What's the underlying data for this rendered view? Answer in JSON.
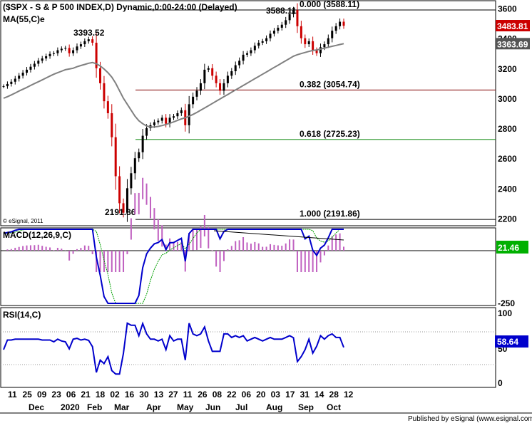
{
  "header": {
    "title": "($SPX - S & P 500 INDEX,D) Dynamic,0:00-24:00 (Delayed)",
    "ma_label": "MA(55,C)e",
    "copyright": "© eSignal, 2011",
    "footer": "Published by eSignal (www.esignal.com)"
  },
  "chart_data": [
    {
      "type": "candlestick",
      "panel": "price",
      "y_ticks": [
        2200,
        2400,
        2600,
        2800,
        3000,
        3200,
        3400,
        3600
      ],
      "ylim": [
        2150,
        3650
      ],
      "annotations": {
        "high_feb": "3393.52",
        "low_mar": "2191.86",
        "high_sep": "3588.11"
      },
      "fib_levels": [
        {
          "label": "0.000 (3588.11)",
          "value": 3588.11,
          "color": "#000000"
        },
        {
          "label": "0.382 (3054.74)",
          "value": 3054.74,
          "color": "#800000"
        },
        {
          "label": "0.618 (2725.23)",
          "value": 2725.23,
          "color": "#008000"
        },
        {
          "label": "1.000 (2191.86)",
          "value": 2191.86,
          "color": "#000000"
        }
      ],
      "last_price": {
        "label": "3483.81",
        "value": 3483.81,
        "color": "#cc0000"
      },
      "ma_value": {
        "label": "3363.69",
        "value": 3363.69,
        "color": "#555555"
      },
      "price_series": [
        3080,
        3095,
        3110,
        3130,
        3150,
        3170,
        3190,
        3210,
        3230,
        3250,
        3265,
        3280,
        3295,
        3300,
        3320,
        3330,
        3335,
        3300,
        3320,
        3345,
        3360,
        3380,
        3393,
        3370,
        3200,
        3100,
        2980,
        2900,
        2740,
        2480,
        2300,
        2237,
        2400,
        2500,
        2600,
        2640,
        2750,
        2800,
        2820,
        2840,
        2850,
        2870,
        2830,
        2870,
        2880,
        2900,
        2920,
        2820,
        2960,
        3010,
        3050,
        3100,
        3190,
        3200,
        3150,
        3100,
        3050,
        3100,
        3150,
        3180,
        3220,
        3250,
        3290,
        3300,
        3320,
        3350,
        3370,
        3380,
        3400,
        3430,
        3450,
        3470,
        3490,
        3520,
        3560,
        3588,
        3480,
        3400,
        3360,
        3380,
        3320,
        3300,
        3340,
        3360,
        3400,
        3450,
        3480,
        3510,
        3483
      ],
      "ma_series": [
        3000,
        3010,
        3022,
        3035,
        3048,
        3060,
        3072,
        3085,
        3098,
        3110,
        3122,
        3135,
        3148,
        3160,
        3170,
        3180,
        3190,
        3195,
        3200,
        3210,
        3218,
        3225,
        3233,
        3238,
        3230,
        3215,
        3195,
        3170,
        3140,
        3100,
        3050,
        3000,
        2960,
        2920,
        2880,
        2850,
        2830,
        2815,
        2808,
        2808,
        2812,
        2818,
        2825,
        2833,
        2842,
        2852,
        2862,
        2870,
        2880,
        2892,
        2905,
        2920,
        2935,
        2950,
        2965,
        2980,
        2995,
        3010,
        3025,
        3040,
        3055,
        3070,
        3085,
        3100,
        3115,
        3130,
        3145,
        3160,
        3175,
        3190,
        3205,
        3220,
        3235,
        3250,
        3265,
        3280,
        3290,
        3298,
        3305,
        3312,
        3318,
        3322,
        3328,
        3334,
        3340,
        3346,
        3352,
        3358,
        3363.69
      ]
    },
    {
      "type": "macd",
      "panel": "macd",
      "label": "MACD(12,26,9,C)",
      "tick_label": "-250",
      "last_value": "21.46",
      "ylim": [
        -260,
        90
      ]
    },
    {
      "type": "line",
      "panel": "rsi",
      "label": "RSI(14,C)",
      "y_ticks": [
        0,
        50,
        100
      ],
      "last_value": "58.64",
      "ylim": [
        0,
        100
      ]
    }
  ],
  "x_axis": {
    "day_labels": [
      "11",
      "25",
      "09",
      "23",
      "06",
      "21",
      "18",
      "02",
      "16",
      "30",
      "13",
      "27",
      "11",
      "26",
      "08",
      "22",
      "06",
      "20",
      "03",
      "17",
      "31",
      "14",
      "28",
      "12"
    ],
    "month_labels": [
      "Dec",
      "2020",
      "Feb",
      "Mar",
      "Apr",
      "May",
      "Jun",
      "Jul",
      "Aug",
      "Sep",
      "Oct"
    ]
  }
}
